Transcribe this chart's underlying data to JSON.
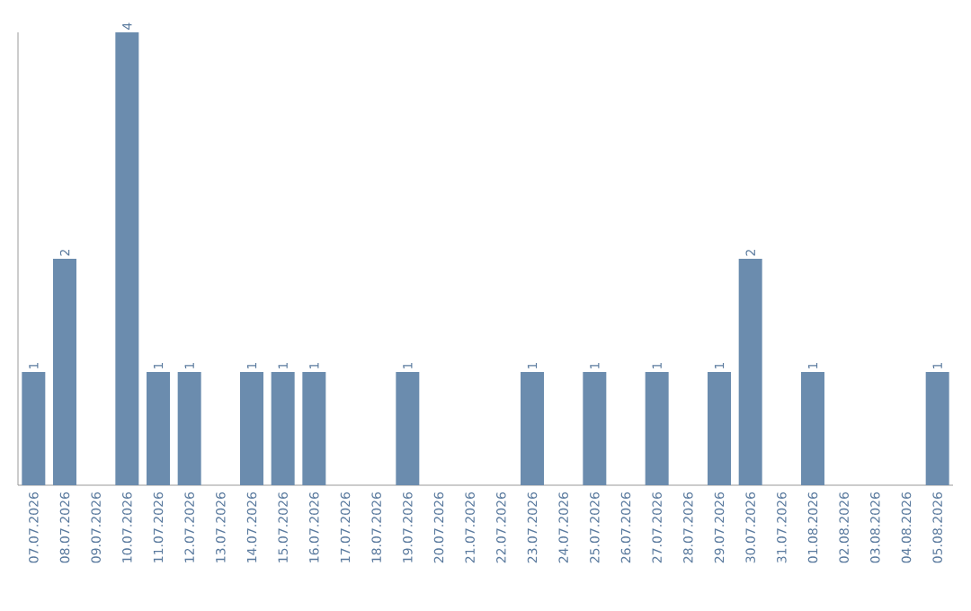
{
  "chart_data": {
    "type": "bar",
    "color": "#6b8cae",
    "categories": [
      "07.07.2026",
      "08.07.2026",
      "09.07.2026",
      "10.07.2026",
      "11.07.2026",
      "12.07.2026",
      "13.07.2026",
      "14.07.2026",
      "15.07.2026",
      "16.07.2026",
      "17.07.2026",
      "18.07.2026",
      "19.07.2026",
      "20.07.2026",
      "21.07.2026",
      "22.07.2026",
      "23.07.2026",
      "24.07.2026",
      "25.07.2026",
      "26.07.2026",
      "27.07.2026",
      "28.07.2026",
      "29.07.2026",
      "30.07.2026",
      "31.07.2026",
      "01.08.2026",
      "02.08.2026",
      "03.08.2026",
      "04.08.2026",
      "05.08.2026"
    ],
    "values": [
      1,
      2,
      0,
      4,
      1,
      1,
      0,
      1,
      1,
      1,
      0,
      0,
      1,
      0,
      0,
      0,
      1,
      0,
      1,
      0,
      1,
      0,
      1,
      2,
      0,
      1,
      0,
      0,
      0,
      1
    ],
    "value_labels": [
      "1",
      "2",
      null,
      "4",
      "1",
      "1",
      null,
      "1",
      "1",
      "1",
      null,
      null,
      "1",
      null,
      null,
      null,
      "1",
      null,
      "1",
      null,
      "1",
      null,
      "1",
      "2",
      null,
      "1",
      null,
      null,
      null,
      "1"
    ],
    "grid": false
  }
}
